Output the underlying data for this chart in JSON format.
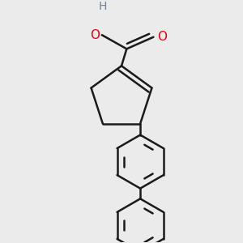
{
  "background_color": "#ebebeb",
  "bond_color": "#1a1a1a",
  "o_color": "#e8000d",
  "h_color": "#708090",
  "line_width": 1.8,
  "figsize": [
    3.0,
    3.0
  ],
  "dpi": 100,
  "xlim": [
    -1.2,
    1.2
  ],
  "ylim": [
    -2.8,
    1.6
  ]
}
